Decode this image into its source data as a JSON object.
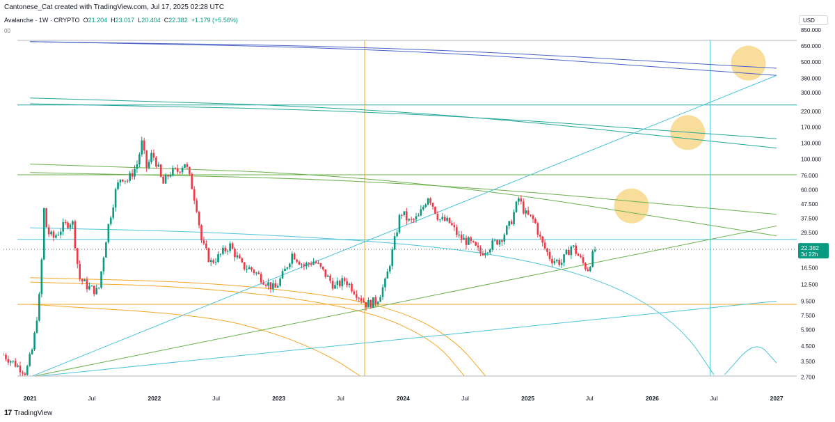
{
  "header": {
    "attribution": "Cantonese_Cat created with TradingView.com, Jul 17, 2025 02:28 UTC",
    "symbol": "Avalanche · 1W · CRYPTO",
    "o_label": "O",
    "o_value": "21.204",
    "h_label": "H",
    "h_value": "23.017",
    "l_label": "L",
    "l_value": "20.404",
    "c_label": "C",
    "c_value": "22.382",
    "change": "+1.179 (+5.56%)",
    "indicator_value": "00",
    "currency": "USD"
  },
  "footer": {
    "logo_mark": "17",
    "brand": "TradingView"
  },
  "colors": {
    "up": "#089981",
    "down": "#f23645",
    "orange": "#f5a623",
    "blue": "#4a62c8",
    "teal": "#22a699",
    "green": "#6ab04c",
    "cyan": "#4cc3d9",
    "yellow": "#f7d27a"
  },
  "chart_data": {
    "type": "candlestick",
    "title": "Avalanche · 1W · CRYPTO",
    "y_scale": "log",
    "ylim": [
      2.5,
      900
    ],
    "xlim": [
      "2020-10-15",
      "2027-03-01"
    ],
    "y_ticks": [
      "850.000",
      "650.000",
      "500.000",
      "380.000",
      "300.000",
      "220.000",
      "170.000",
      "130.000",
      "100.000",
      "76.000",
      "60.000",
      "47.500",
      "37.500",
      "29.500",
      "16.500",
      "12.500",
      "9.500",
      "7.500",
      "5.900",
      "4.500",
      "3.500",
      "2.700"
    ],
    "x_ticks": [
      {
        "date": "2021-01-01",
        "label": "2021"
      },
      {
        "date": "2021-07-01",
        "label": "Jul"
      },
      {
        "date": "2022-01-01",
        "label": "2022"
      },
      {
        "date": "2022-07-01",
        "label": "Jul"
      },
      {
        "date": "2023-01-01",
        "label": "2023"
      },
      {
        "date": "2023-07-01",
        "label": "Jul"
      },
      {
        "date": "2024-01-01",
        "label": "2024"
      },
      {
        "date": "2024-07-01",
        "label": "Jul"
      },
      {
        "date": "2025-01-01",
        "label": "2025"
      },
      {
        "date": "2025-07-01",
        "label": "Jul"
      },
      {
        "date": "2026-01-01",
        "label": "2026"
      },
      {
        "date": "2026-07-01",
        "label": "Jul"
      },
      {
        "date": "2027-01-01",
        "label": "2027"
      }
    ],
    "last_price": {
      "value": 22.382,
      "label": "22.382",
      "countdown": "3d 22h"
    },
    "price_path": [
      [
        "2020-10-15",
        3.9
      ],
      [
        "2020-11-15",
        3.4
      ],
      [
        "2020-12-20",
        2.9
      ],
      [
        "2021-01-10",
        4.5
      ],
      [
        "2021-02-01",
        12
      ],
      [
        "2021-02-10",
        45
      ],
      [
        "2021-02-20",
        30
      ],
      [
        "2021-03-10",
        27
      ],
      [
        "2021-04-10",
        33
      ],
      [
        "2021-05-05",
        36
      ],
      [
        "2021-05-25",
        14
      ],
      [
        "2021-06-20",
        12
      ],
      [
        "2021-07-20",
        11
      ],
      [
        "2021-08-15",
        30
      ],
      [
        "2021-09-10",
        60
      ],
      [
        "2021-09-25",
        75
      ],
      [
        "2021-10-15",
        70
      ],
      [
        "2021-11-10",
        90
      ],
      [
        "2021-11-25",
        130
      ],
      [
        "2021-12-10",
        85
      ],
      [
        "2021-12-25",
        110
      ],
      [
        "2022-01-10",
        90
      ],
      [
        "2022-01-25",
        65
      ],
      [
        "2022-02-15",
        80
      ],
      [
        "2022-03-10",
        82
      ],
      [
        "2022-04-01",
        95
      ],
      [
        "2022-04-20",
        65
      ],
      [
        "2022-05-05",
        45
      ],
      [
        "2022-05-20",
        25
      ],
      [
        "2022-06-15",
        18
      ],
      [
        "2022-07-10",
        20
      ],
      [
        "2022-08-10",
        24
      ],
      [
        "2022-09-15",
        17
      ],
      [
        "2022-10-15",
        16
      ],
      [
        "2022-11-10",
        14
      ],
      [
        "2022-12-20",
        11.5
      ],
      [
        "2023-01-15",
        15
      ],
      [
        "2023-02-10",
        21
      ],
      [
        "2023-03-15",
        17
      ],
      [
        "2023-04-15",
        18.5
      ],
      [
        "2023-05-15",
        15
      ],
      [
        "2023-06-15",
        12
      ],
      [
        "2023-07-15",
        13.5
      ],
      [
        "2023-08-15",
        11
      ],
      [
        "2023-09-15",
        9.0
      ],
      [
        "2023-10-15",
        9.5
      ],
      [
        "2023-11-10",
        13
      ],
      [
        "2023-12-01",
        22
      ],
      [
        "2023-12-25",
        42
      ],
      [
        "2024-01-20",
        35
      ],
      [
        "2024-02-15",
        38
      ],
      [
        "2024-03-15",
        55
      ],
      [
        "2024-04-15",
        37
      ],
      [
        "2024-05-15",
        35
      ],
      [
        "2024-06-15",
        27
      ],
      [
        "2024-07-15",
        25
      ],
      [
        "2024-08-15",
        21
      ],
      [
        "2024-09-15",
        24
      ],
      [
        "2024-10-15",
        27
      ],
      [
        "2024-11-10",
        34
      ],
      [
        "2024-12-05",
        52
      ],
      [
        "2024-12-25",
        40
      ],
      [
        "2025-01-20",
        36
      ],
      [
        "2025-02-10",
        25
      ],
      [
        "2025-03-10",
        19
      ],
      [
        "2025-04-10",
        18
      ],
      [
        "2025-05-10",
        24
      ],
      [
        "2025-06-10",
        18
      ],
      [
        "2025-06-25",
        16
      ],
      [
        "2025-07-17",
        22.382
      ]
    ],
    "horizontal_lines": [
      {
        "price": 9.0,
        "color": "orange"
      },
      {
        "price": 245,
        "color": "teal"
      },
      {
        "price": 77,
        "color": "green"
      },
      {
        "price": 26.4,
        "color": "cyan"
      }
    ],
    "vertical_lines": [
      {
        "date": "2023-09-10",
        "color": "orange"
      },
      {
        "date": "2026-06-20",
        "color": "cyan"
      }
    ],
    "curves": [
      {
        "color": "blue",
        "points": [
          [
            "2021-01-01",
            700
          ],
          [
            "2024-01-01",
            620
          ],
          [
            "2027-01-01",
            400
          ]
        ]
      },
      {
        "color": "blue",
        "points": [
          [
            "2021-01-01",
            700
          ],
          [
            "2024-01-01",
            640
          ],
          [
            "2027-01-01",
            450
          ]
        ]
      },
      {
        "color": "teal",
        "points": [
          [
            "2021-01-01",
            275
          ],
          [
            "2024-01-01",
            230
          ],
          [
            "2027-01-01",
            120
          ]
        ]
      },
      {
        "color": "teal",
        "points": [
          [
            "2021-01-01",
            250
          ],
          [
            "2024-01-01",
            220
          ],
          [
            "2027-01-01",
            140
          ]
        ]
      },
      {
        "color": "green",
        "points": [
          [
            "2021-01-01",
            92
          ],
          [
            "2024-01-01",
            75
          ],
          [
            "2027-01-01",
            28
          ]
        ]
      },
      {
        "color": "green",
        "points": [
          [
            "2021-01-01",
            80
          ],
          [
            "2024-01-01",
            70
          ],
          [
            "2027-01-01",
            40
          ]
        ]
      },
      {
        "color": "cyan",
        "points": [
          [
            "2021-01-01",
            32
          ],
          [
            "2022-06-01",
            30
          ],
          [
            "2024-01-01",
            25
          ],
          [
            "2025-01-01",
            19
          ],
          [
            "2025-10-01",
            12
          ],
          [
            "2026-04-01",
            6
          ],
          [
            "2026-07-01",
            2.8
          ]
        ]
      },
      {
        "color": "cyan",
        "points": [
          [
            "2026-08-01",
            2.8
          ],
          [
            "2026-11-01",
            5
          ],
          [
            "2027-01-01",
            3.4
          ]
        ]
      },
      {
        "color": "orange",
        "points": [
          [
            "2021-01-01",
            14
          ],
          [
            "2022-06-01",
            13
          ],
          [
            "2023-06-01",
            10.5
          ],
          [
            "2024-01-01",
            8
          ],
          [
            "2024-06-01",
            5
          ],
          [
            "2024-09-01",
            2.7
          ]
        ]
      },
      {
        "color": "orange",
        "points": [
          [
            "2021-01-01",
            13
          ],
          [
            "2022-06-01",
            12
          ],
          [
            "2023-09-01",
            8.5
          ],
          [
            "2024-04-01",
            5
          ],
          [
            "2024-07-01",
            2.7
          ]
        ]
      },
      {
        "color": "orange",
        "points": [
          [
            "2021-01-01",
            9
          ],
          [
            "2022-06-01",
            7.5
          ],
          [
            "2023-01-01",
            5.5
          ],
          [
            "2023-06-01",
            3.8
          ],
          [
            "2023-09-01",
            2.7
          ]
        ]
      }
    ],
    "trend_lines": [
      {
        "color": "cyan",
        "from": [
          "2021-01-01",
          2.7
        ],
        "to": [
          "2027-01-01",
          400
        ]
      },
      {
        "color": "green",
        "from": [
          "2021-01-01",
          2.7
        ],
        "to": [
          "2027-01-01",
          33
        ]
      },
      {
        "color": "cyan",
        "from": [
          "2021-01-01",
          2.7
        ],
        "to": [
          "2027-01-01",
          9.5
        ]
      }
    ],
    "highlight_circles": [
      {
        "date": "2026-10-10",
        "price": 490,
        "color": "yellow"
      },
      {
        "date": "2026-04-15",
        "price": 155,
        "color": "yellow"
      },
      {
        "date": "2025-11-01",
        "price": 46,
        "color": "yellow"
      }
    ]
  }
}
